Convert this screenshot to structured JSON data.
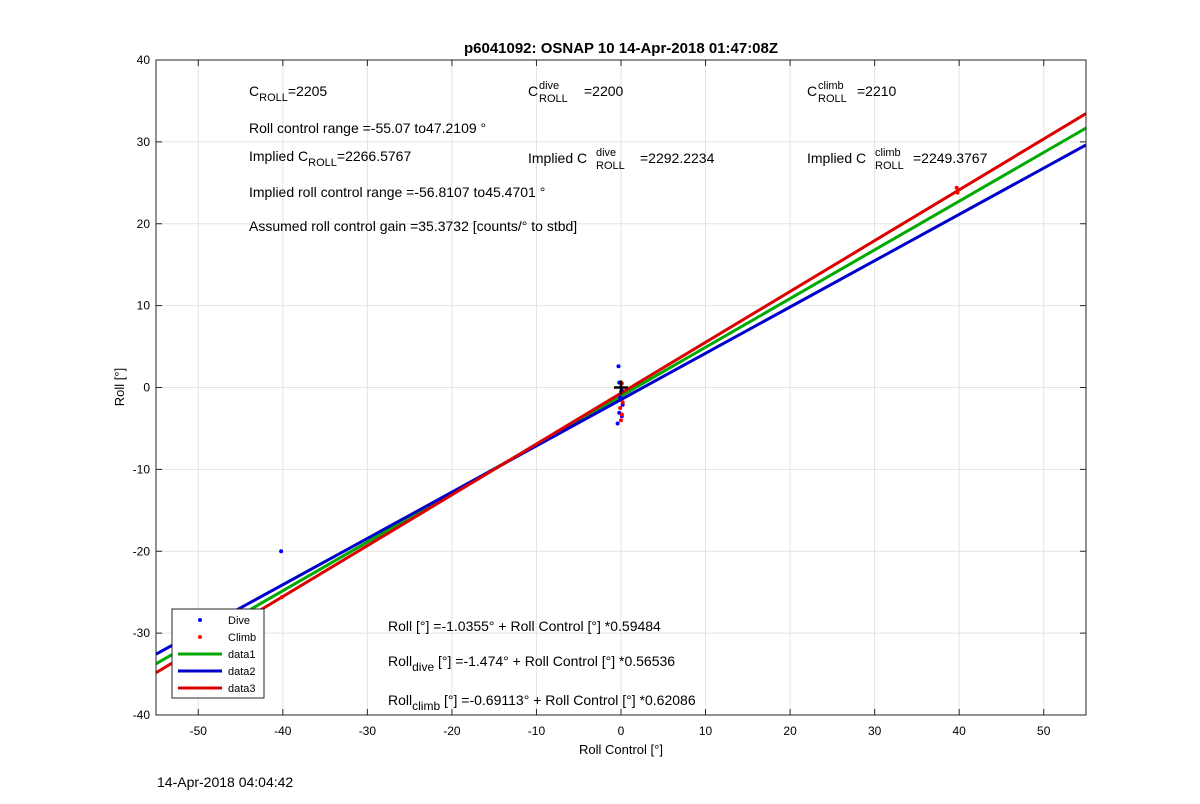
{
  "chart_data": {
    "type": "scatter",
    "title": "p6041092: OSNAP 10 14-Apr-2018 01:47:08Z",
    "xlabel": "Roll Control [°]",
    "ylabel": "Roll [°]",
    "xlim": [
      -55,
      55
    ],
    "ylim": [
      -40,
      40
    ],
    "xticks": [
      -50,
      -40,
      -30,
      -20,
      -10,
      0,
      10,
      20,
      30,
      40,
      50
    ],
    "yticks": [
      -40,
      -30,
      -20,
      -10,
      0,
      10,
      20,
      30,
      40
    ],
    "grid": true,
    "legend_position": "bottom-left",
    "series": [
      {
        "name": "Dive",
        "kind": "points",
        "color": "#0000ff",
        "points": [
          [
            -40.2,
            -20.0
          ],
          [
            -50.3,
            -28.5
          ],
          [
            -0.3,
            2.6
          ],
          [
            -0.2,
            0.6
          ],
          [
            0.1,
            -0.4
          ],
          [
            -0.1,
            -1.2
          ],
          [
            0.2,
            -2.1
          ],
          [
            -0.2,
            -3.1
          ],
          [
            0.1,
            -3.5
          ],
          [
            -0.4,
            -4.4
          ]
        ]
      },
      {
        "name": "Climb",
        "kind": "points",
        "color": "#ff0000",
        "points": [
          [
            39.7,
            24.4
          ],
          [
            39.8,
            23.8
          ],
          [
            0.1,
            0.5
          ],
          [
            0.0,
            -0.6
          ],
          [
            0.2,
            -1.8
          ],
          [
            -0.1,
            -2.5
          ],
          [
            0.1,
            -3.3
          ],
          [
            0.0,
            -4.0
          ],
          [
            -40.1,
            -25.6
          ]
        ]
      },
      {
        "name": "data1",
        "kind": "line",
        "color": "#00aa00",
        "x": [
          -55,
          55
        ],
        "y": [
          -33.752,
          31.681
        ]
      },
      {
        "name": "data2",
        "kind": "line",
        "color": "#0000cc",
        "x": [
          -55,
          55
        ],
        "y": [
          -32.569,
          29.621
        ]
      },
      {
        "name": "data3",
        "kind": "line",
        "color": "#dd0000",
        "x": [
          -55,
          55
        ],
        "y": [
          -34.838,
          33.456
        ]
      }
    ],
    "centroid_marker": {
      "color": "#000000",
      "x": 0,
      "y": 0
    },
    "annotations": {
      "c_roll": {
        "base": "C",
        "sub": "ROLL",
        "value": "=2205"
      },
      "c_roll_dive": {
        "base": "C",
        "sup": "dive",
        "sub": "ROLL",
        "value": "=2200"
      },
      "c_roll_climb": {
        "base": "C",
        "sup": "climb",
        "sub": "ROLL",
        "value": "=2210"
      },
      "roll_control_range": "Roll control range =-55.07 to47.2109 °",
      "implied_c_roll": {
        "prefix": "Implied C",
        "sub": "ROLL",
        "value": "=2266.5767"
      },
      "implied_c_roll_dive": {
        "prefix": "Implied C",
        "sup": "dive",
        "sub": "ROLL",
        "value": "=2292.2234"
      },
      "implied_c_roll_climb": {
        "prefix": "Implied C",
        "sup": "climb",
        "sub": "ROLL",
        "value": "=2249.3767"
      },
      "implied_roll_control_range": "Implied roll control range =-56.8107 to45.4701 °",
      "assumed_gain": "Assumed roll control gain =35.3732 [counts/° to stbd]",
      "fit_all": "Roll [°] =-1.0355° + Roll Control [°] *0.59484",
      "fit_dive": {
        "base": "Roll",
        "sub": "dive",
        "rest": " [°] =-1.474° + Roll Control [°] *0.56536"
      },
      "fit_climb": {
        "base": "Roll",
        "sub": "climb",
        "rest": " [°] =-0.69113° + Roll Control [°] *0.62086"
      }
    }
  },
  "footer": {
    "timestamp": "14-Apr-2018 04:04:42"
  }
}
